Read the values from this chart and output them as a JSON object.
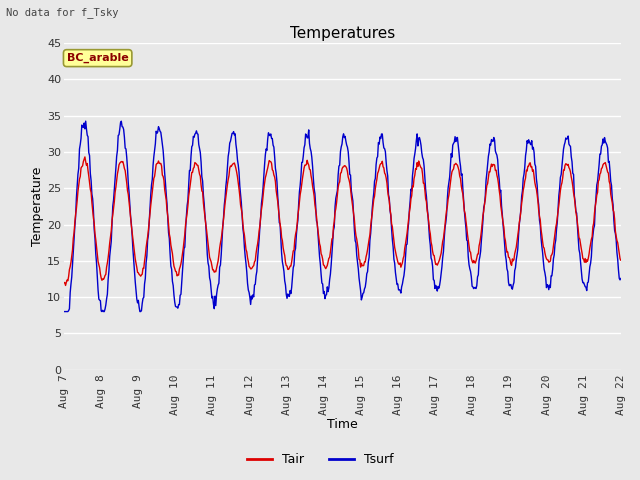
{
  "title": "Temperatures",
  "subtitle": "No data for f_Tsky",
  "xlabel": "Time",
  "ylabel": "Temperature",
  "legend_label": "BC_arable",
  "ylim": [
    0,
    45
  ],
  "yticks": [
    0,
    5,
    10,
    15,
    20,
    25,
    30,
    35,
    40,
    45
  ],
  "xticklabels": [
    "Aug 7",
    "Aug 8",
    "Aug 9",
    "Aug 10",
    "Aug 11",
    "Aug 12",
    "Aug 13",
    "Aug 14",
    "Aug 15",
    "Aug 16",
    "Aug 17",
    "Aug 18",
    "Aug 19",
    "Aug 20",
    "Aug 21",
    "Aug 22"
  ],
  "tair_color": "#dd0000",
  "tsurf_color": "#0000cc",
  "background_color": "#e8e8e8",
  "fig_bg_color": "#e8e8e8",
  "n_days": 15,
  "points_per_day": 48
}
